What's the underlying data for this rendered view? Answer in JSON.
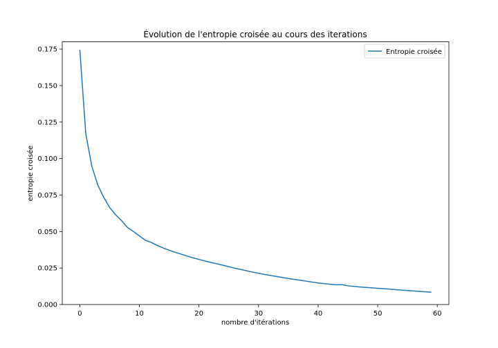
{
  "chart_data": {
    "type": "line",
    "title": "Évolution de l'entropie croisée au cours des iterations",
    "xlabel": "nombre d'itérations",
    "ylabel": "entropie croisée",
    "xlim": [
      -2.95,
      61.95
    ],
    "ylim": [
      0,
      0.18
    ],
    "xticks": [
      0,
      10,
      20,
      30,
      40,
      50,
      60
    ],
    "xtick_labels": [
      "0",
      "10",
      "20",
      "30",
      "40",
      "50",
      "60"
    ],
    "yticks": [
      0,
      0.025,
      0.05,
      0.075,
      0.1,
      0.125,
      0.15,
      0.175
    ],
    "ytick_labels": [
      "0.000",
      "0.025",
      "0.050",
      "0.075",
      "0.100",
      "0.125",
      "0.150",
      "0.175"
    ],
    "grid": false,
    "legend_position": "top-right",
    "series": [
      {
        "name": "Entropie croisée",
        "color": "#1f77b4",
        "x": [
          0,
          1,
          2,
          3,
          4,
          5,
          6,
          7,
          8,
          9,
          10,
          11,
          12,
          13,
          14,
          15,
          16,
          17,
          18,
          19,
          20,
          21,
          22,
          23,
          24,
          25,
          26,
          27,
          28,
          29,
          30,
          31,
          32,
          33,
          34,
          35,
          36,
          37,
          38,
          39,
          40,
          41,
          42,
          43,
          44,
          45,
          46,
          47,
          48,
          49,
          50,
          51,
          52,
          53,
          54,
          55,
          56,
          57,
          58,
          59
        ],
        "y": [
          0.1745,
          0.117,
          0.095,
          0.082,
          0.0735,
          0.0665,
          0.0615,
          0.0575,
          0.0528,
          0.05,
          0.047,
          0.044,
          0.0425,
          0.0405,
          0.0387,
          0.0372,
          0.0358,
          0.0345,
          0.0332,
          0.032,
          0.0309,
          0.0298,
          0.0288,
          0.0279,
          0.0269,
          0.0259,
          0.0249,
          0.024,
          0.0231,
          0.0222,
          0.0214,
          0.0206,
          0.0199,
          0.0192,
          0.0185,
          0.0178,
          0.0172,
          0.0166,
          0.016,
          0.0154,
          0.0148,
          0.0143,
          0.0139,
          0.0135,
          0.0136,
          0.0128,
          0.0124,
          0.012,
          0.0117,
          0.0114,
          0.0111,
          0.0108,
          0.0105,
          0.0102,
          0.0099,
          0.0096,
          0.0093,
          0.009,
          0.0087,
          0.0084
        ]
      }
    ]
  }
}
